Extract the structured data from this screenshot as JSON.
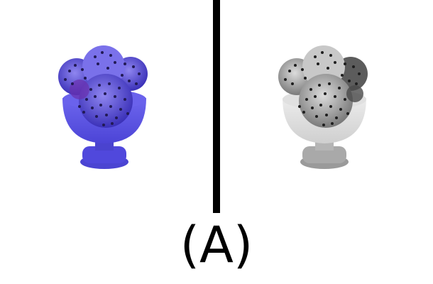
{
  "figure": {
    "caption": "(A)",
    "panels": [
      {
        "name": "blue-tinted",
        "tint": "#4a40d8",
        "cup": "#5a52e6",
        "stem": "#4a43cf",
        "dots": "#221a55"
      },
      {
        "name": "grayscale",
        "tint": "#8a8a8a",
        "cup": "#d6d6d6",
        "stem": "#a9a9a9",
        "dots": "#1e1e1e"
      }
    ]
  },
  "colors": {
    "background": "#ffffff",
    "divider": "#000000"
  }
}
